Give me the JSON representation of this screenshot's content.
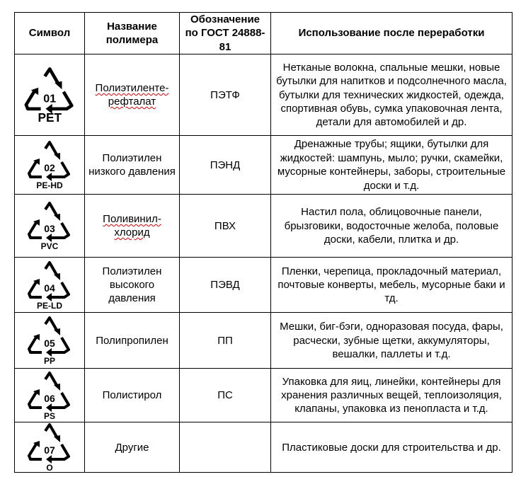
{
  "headers": {
    "symbol": "Символ",
    "name": "Название полимера",
    "gost": "Обозначение по ГОСТ 24888-81",
    "usage": "Использование после переработки"
  },
  "rows": [
    {
      "code": "01",
      "abbr": "PET",
      "name": "Полиэтиленте-рефталат",
      "gost": "ПЭТФ",
      "usage": "Нетканые волокна, спальные мешки, новые бутылки для напитков и подсолнечного масла, бутылки для технических жидкостей, одежда, спортивная обувь, сумка упаковочная лента, детали для автомобилей и др."
    },
    {
      "code": "02",
      "abbr": "PE-HD",
      "name": "Полиэтилен низкого давления",
      "gost": "ПЭНД",
      "usage": "Дренажные трубы; ящики, бутылки для жидкостей: шампунь, мыло; ручки, скамейки, мусорные контейнеры, заборы, строительные доски и т.д."
    },
    {
      "code": "03",
      "abbr": "PVC",
      "name": "Поливинил-хлорид",
      "gost": "ПВХ",
      "usage": "Настил пола, облицовочные панели, брызговики, водосточные желоба, половые доски, кабели, плитка и др."
    },
    {
      "code": "04",
      "abbr": "PE-LD",
      "name": "Полиэтилен высокого давления",
      "gost": "ПЭВД",
      "usage": "Пленки, черепица, прокладочный материал, почтовые конверты, мебель, мусорные баки и тд."
    },
    {
      "code": "05",
      "abbr": "PP",
      "name": "Полипропилен",
      "gost": "ПП",
      "usage": "Мешки, биг-бэги, одноразовая посуда, фары, расчески, зубные щетки, аккумуляторы, вешалки, паллеты и т.д."
    },
    {
      "code": "06",
      "abbr": "PS",
      "name": "Полистирол",
      "gost": "ПС",
      "usage": "Упаковка для яиц, линейки, контейнеры для хранения различных вещей, теплоизоляция, клапаны, упаковка из пенопласта и т.д."
    },
    {
      "code": "07",
      "abbr": "O",
      "name": "Другие",
      "gost": "",
      "usage": "Пластиковые доски для строительства и др."
    }
  ]
}
